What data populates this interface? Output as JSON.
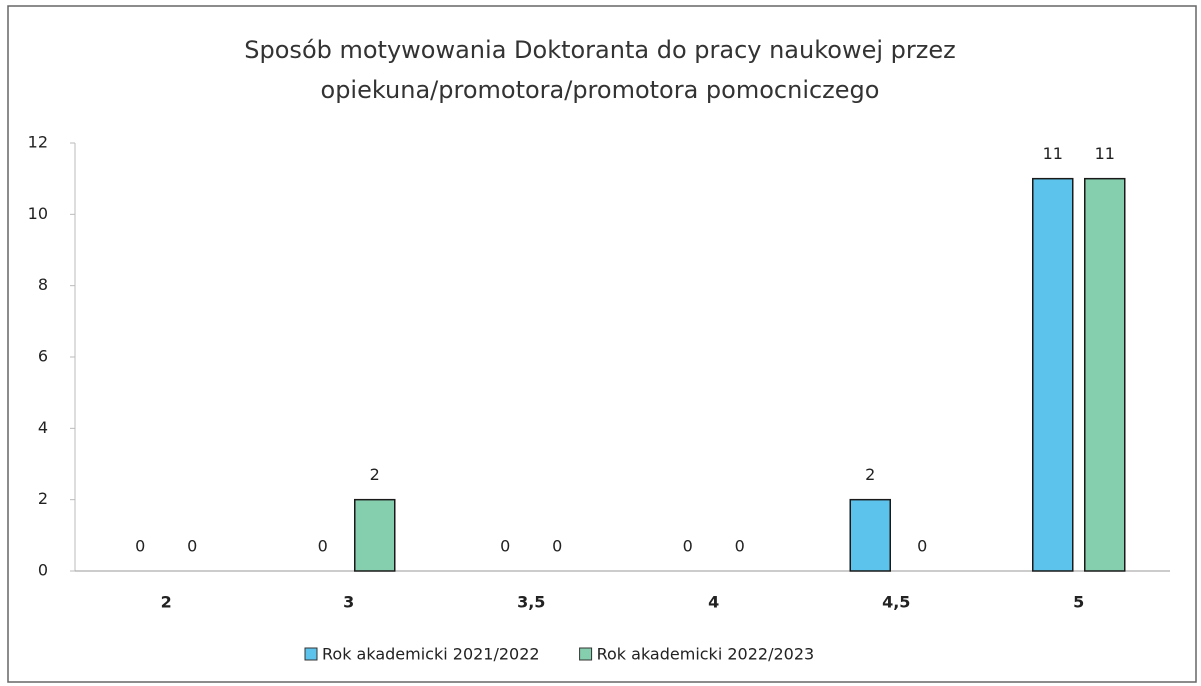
{
  "chart_data": {
    "type": "bar",
    "title": "Sposób motywowania Doktoranta do pracy naukowej przez opiekuna/promotora/promotora pomocniczego",
    "categories": [
      "2",
      "3",
      "3,5",
      "4",
      "4,5",
      "5"
    ],
    "series": [
      {
        "name": "Rok akademicki 2021/2022",
        "color": "#5cc3ec",
        "values": [
          0,
          0,
          0,
          0,
          2,
          11
        ]
      },
      {
        "name": "Rok akademicki 2022/2023",
        "color": "#86cfae",
        "values": [
          0,
          2,
          0,
          0,
          0,
          11
        ]
      }
    ],
    "ylim": [
      0,
      12
    ],
    "yticks": [
      0,
      2,
      4,
      6,
      8,
      10,
      12
    ],
    "grid": false,
    "legend": "bottom"
  }
}
